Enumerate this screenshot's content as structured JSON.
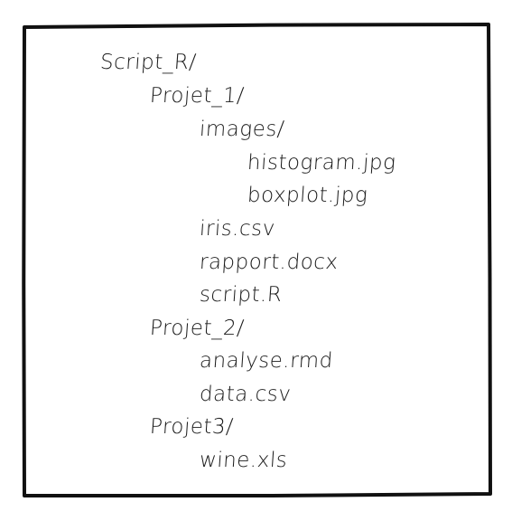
{
  "tree": {
    "items": [
      {
        "label": "Script_R/"
      },
      {
        "label": "Projet_1/"
      },
      {
        "label": "images/"
      },
      {
        "label": "histogram.jpg"
      },
      {
        "label": "boxplot.jpg"
      },
      {
        "label": "iris.csv"
      },
      {
        "label": "rapport.docx"
      },
      {
        "label": "script.R"
      },
      {
        "label": "Projet_2/"
      },
      {
        "label": "analyse.rmd"
      },
      {
        "label": "data.csv"
      },
      {
        "label": "Projet3/"
      },
      {
        "label": "wine.xls"
      }
    ]
  },
  "colors": {
    "border": "#111111",
    "text": "#1a1a1a",
    "background": "#ffffff"
  }
}
